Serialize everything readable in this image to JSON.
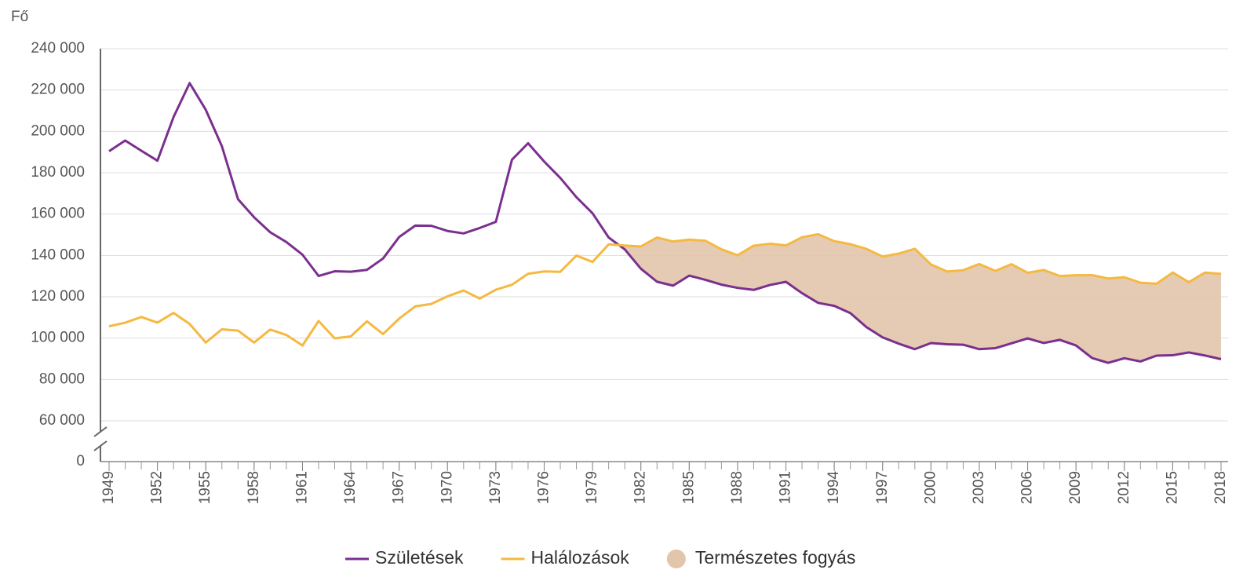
{
  "chart_data": {
    "type": "line",
    "y_axis_label": "Fő",
    "x": [
      1949,
      1950,
      1951,
      1952,
      1953,
      1954,
      1955,
      1956,
      1957,
      1958,
      1959,
      1960,
      1961,
      1962,
      1963,
      1964,
      1965,
      1966,
      1967,
      1968,
      1969,
      1970,
      1971,
      1972,
      1973,
      1974,
      1975,
      1976,
      1977,
      1978,
      1979,
      1980,
      1981,
      1982,
      1983,
      1984,
      1985,
      1986,
      1987,
      1988,
      1989,
      1990,
      1991,
      1992,
      1993,
      1994,
      1995,
      1996,
      1997,
      1998,
      1999,
      2000,
      2001,
      2002,
      2003,
      2004,
      2005,
      2006,
      2007,
      2008,
      2009,
      2010,
      2011,
      2012,
      2013,
      2014,
      2015,
      2016,
      2017,
      2018
    ],
    "series": [
      {
        "name": "Születések",
        "color": "#7b2f8e",
        "values": [
          190398,
          195567,
          190645,
          185820,
          206926,
          223347,
          210430,
          192810,
          167202,
          158428,
          151194,
          146461,
          140365,
          130053,
          132335,
          132105,
          133009,
          138489,
          148886,
          154419,
          154318,
          151819,
          150640,
          153265,
          156224,
          186288,
          194240,
          185405,
          177448,
          168160,
          160364,
          148673,
          142890,
          133559,
          127258,
          125359,
          130200,
          128204,
          125840,
          124296,
          123304,
          125679,
          127207,
          121724,
          117033,
          115598,
          112054,
          105272,
          100350,
          97301,
          94645,
          97597,
          97047,
          96804,
          94647,
          95137,
          97496,
          99871,
          97613,
          99149,
          96442,
          90335,
          88049,
          90269,
          88689,
          91510,
          91690,
          93063,
          91577,
          89807
        ]
      },
      {
        "name": "Halálozások",
        "color": "#f5b942",
        "values": [
          105718,
          107443,
          110208,
          107485,
          112179,
          106856,
          97848,
          104236,
          103645,
          97832,
          104108,
          101525,
          96410,
          108273,
          99871,
          100830,
          108119,
          101943,
          109424,
          115337,
          116544,
          120197,
          123009,
          119100,
          123412,
          125816,
          131102,
          132240,
          132070,
          139920,
          136829,
          145355,
          144757,
          144318,
          148643,
          146709,
          147614,
          147089,
          142954,
          140042,
          144695,
          145660,
          144813,
          148781,
          150244,
          146889,
          145431,
          143130,
          139434,
          140870,
          143210,
          135601,
          132183,
          132833,
          135823,
          132492,
          135732,
          131603,
          132938,
          130027,
          130414,
          130456,
          128795,
          129440,
          126778,
          126308,
          131697,
          127053,
          131674,
          131045
        ]
      }
    ],
    "area": {
      "name": "Természetes fogyás",
      "color": "#e2c5ab"
    },
    "xlim": [
      1949,
      2018
    ],
    "xticks": [
      1949,
      1952,
      1955,
      1958,
      1961,
      1964,
      1967,
      1970,
      1973,
      1976,
      1979,
      1982,
      1985,
      1988,
      1991,
      1994,
      1997,
      2000,
      2003,
      2006,
      2009,
      2012,
      2015,
      2018
    ],
    "ylim": [
      0,
      240000
    ],
    "axis_break": [
      0,
      60000
    ],
    "yticks": [
      0,
      {
        "value": 60000,
        "label": "60 000"
      },
      {
        "value": 80000,
        "label": "80 000"
      },
      {
        "value": 100000,
        "label": "100 000"
      },
      {
        "value": 120000,
        "label": "120 000"
      },
      {
        "value": 140000,
        "label": "140 000"
      },
      {
        "value": 160000,
        "label": "160 000"
      },
      {
        "value": 180000,
        "label": "180 000"
      },
      {
        "value": 200000,
        "label": "200 000"
      },
      {
        "value": 220000,
        "label": "220 000"
      },
      {
        "value": 240000,
        "label": "240 000"
      }
    ],
    "grid": true,
    "legend": "bottom"
  }
}
